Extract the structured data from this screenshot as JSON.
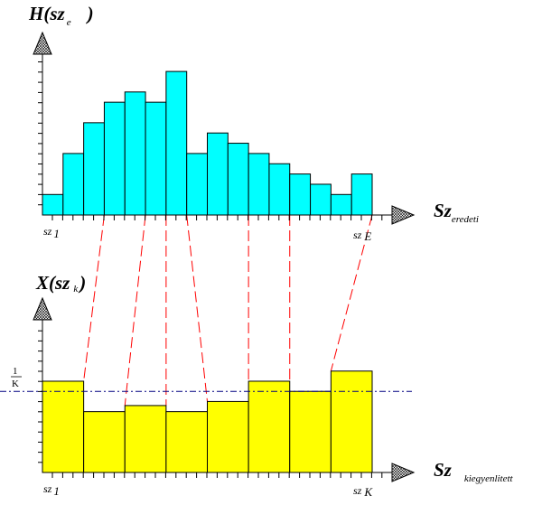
{
  "colors": {
    "top_bars": "#00ffff",
    "bottom_bars": "#ffff00",
    "connectors": "#ff0000",
    "reference_line": "#000080",
    "bar_stroke": "#000000"
  },
  "top_panel": {
    "y_label": {
      "main": "H(sz",
      "sub": "e",
      "close": ")"
    },
    "x_label": {
      "main": "Sz",
      "sub": "eredeti"
    },
    "tick_left": {
      "main": "sz",
      "sub": "1"
    },
    "tick_right": {
      "main": "sz",
      "sub": "E"
    }
  },
  "bottom_panel": {
    "y_label": {
      "main": "X(sz",
      "sub": "k",
      "close": ")"
    },
    "x_label": {
      "main": "Sz",
      "sub": "kiegyenlitett"
    },
    "tick_left": {
      "main": "sz",
      "sub": "1"
    },
    "tick_right": {
      "main": "sz",
      "sub": "K"
    },
    "reference": {
      "numerator": "1",
      "denominator": "K"
    }
  },
  "chart_data": [
    {
      "type": "bar",
      "values": [
        1,
        3,
        4.5,
        5.5,
        6,
        5.5,
        7,
        3,
        4,
        3.5,
        3,
        2.5,
        2,
        1.5,
        1,
        2
      ],
      "reference_value": null
    },
    {
      "type": "bar",
      "values": [
        4.5,
        3,
        3.3,
        3,
        3.5,
        4.5,
        4,
        5
      ],
      "reference_value": 4
    }
  ],
  "mapping_groups": [
    [
      0,
      2
    ],
    [
      3,
      4
    ],
    [
      5
    ],
    [
      6
    ],
    [
      7,
      9
    ],
    [
      10,
      11
    ],
    [
      12,
      15
    ]
  ]
}
